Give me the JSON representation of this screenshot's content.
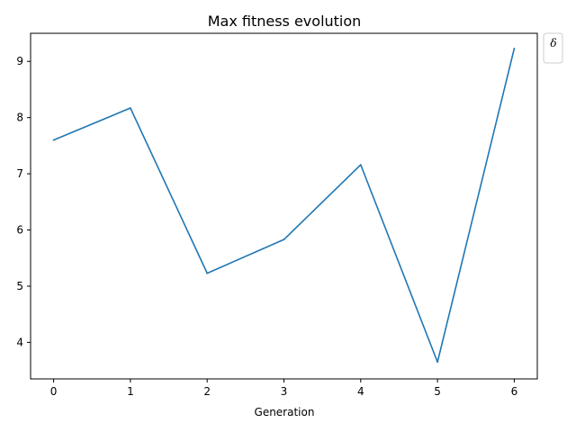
{
  "chart_data": {
    "type": "line",
    "title": "Max fitness evolution",
    "xlabel": "Generation",
    "ylabel": "",
    "x": [
      0,
      1,
      2,
      3,
      4,
      5,
      6
    ],
    "series": [
      {
        "name": "δ",
        "values": [
          7.6,
          8.17,
          5.23,
          5.83,
          7.16,
          3.65,
          9.23
        ],
        "color": "#1f77b4"
      }
    ],
    "xlim": [
      -0.3,
      6.3
    ],
    "ylim": [
      3.35,
      9.5
    ],
    "xticks": [
      0,
      1,
      2,
      3,
      4,
      5,
      6
    ],
    "yticks": [
      4,
      5,
      6,
      7,
      8,
      9
    ],
    "grid": false,
    "legend": {
      "placement": "outside-top-right",
      "entries": [
        "δ"
      ]
    }
  }
}
